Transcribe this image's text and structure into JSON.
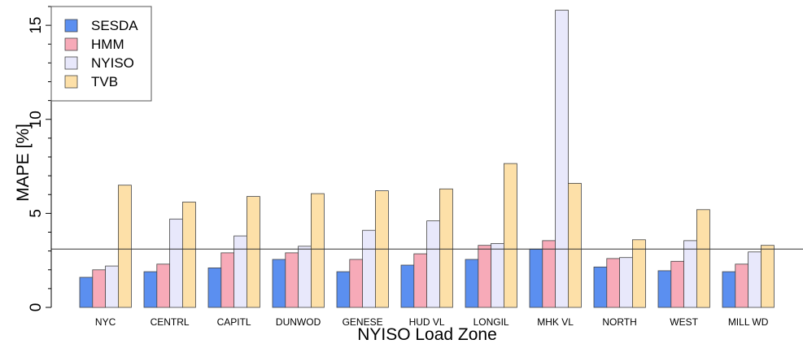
{
  "chart_data": {
    "type": "bar",
    "title": "",
    "xlabel": "NYISO Load Zone",
    "ylabel": "MAPE [%]",
    "ylim": [
      0,
      16
    ],
    "yticks": [
      0,
      5,
      10,
      15
    ],
    "grid": false,
    "legend_position": "top-left",
    "reference_line": 3.1,
    "categories": [
      "NYC",
      "CENTRL",
      "CAPITL",
      "DUNWOD",
      "GENESE",
      "HUD VL",
      "LONGIL",
      "MHK VL",
      "NORTH",
      "WEST",
      "MILL WD"
    ],
    "series": [
      {
        "name": "SESDA",
        "color": "#5b8ff0",
        "values": [
          1.6,
          1.9,
          2.1,
          2.55,
          1.9,
          2.25,
          2.55,
          3.1,
          2.15,
          1.95,
          1.9
        ]
      },
      {
        "name": "HMM",
        "color": "#f7aab8",
        "values": [
          2.0,
          2.3,
          2.9,
          2.9,
          2.55,
          2.85,
          3.3,
          3.55,
          2.6,
          2.45,
          2.3
        ]
      },
      {
        "name": "NYISO",
        "color": "#e8e8fb",
        "values": [
          2.2,
          4.7,
          3.8,
          3.25,
          4.1,
          4.6,
          3.4,
          15.8,
          2.65,
          3.55,
          2.95
        ]
      },
      {
        "name": "TVB",
        "color": "#fde0a8",
        "values": [
          6.5,
          5.6,
          5.9,
          6.05,
          6.2,
          6.3,
          7.65,
          6.6,
          3.6,
          5.2,
          3.3
        ]
      }
    ]
  }
}
